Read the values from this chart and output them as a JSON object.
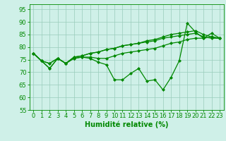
{
  "title": "",
  "xlabel": "Humidité relative (%)",
  "ylabel": "",
  "background_color": "#cff0e8",
  "line_color": "#008800",
  "grid_color": "#99ccbb",
  "xlim": [
    -0.5,
    23.5
  ],
  "ylim": [
    55,
    97
  ],
  "yticks": [
    55,
    60,
    65,
    70,
    75,
    80,
    85,
    90,
    95
  ],
  "xticks": [
    0,
    1,
    2,
    3,
    4,
    5,
    6,
    7,
    8,
    9,
    10,
    11,
    12,
    13,
    14,
    15,
    16,
    17,
    18,
    19,
    20,
    21,
    22,
    23
  ],
  "lines": [
    [
      77.5,
      74.5,
      71.5,
      75.5,
      73.5,
      75.5,
      76.0,
      75.5,
      74.0,
      73.0,
      67.0,
      67.0,
      69.5,
      71.5,
      66.5,
      67.0,
      63.0,
      68.0,
      74.5,
      89.5,
      86.0,
      83.5,
      85.5,
      83.5
    ],
    [
      77.5,
      74.5,
      71.5,
      75.5,
      73.5,
      75.5,
      76.0,
      76.0,
      75.5,
      75.5,
      76.5,
      77.5,
      78.0,
      78.5,
      79.0,
      79.5,
      80.5,
      81.5,
      82.0,
      83.0,
      83.5,
      83.5,
      84.0,
      83.5
    ],
    [
      77.5,
      74.5,
      73.5,
      75.5,
      73.5,
      76.0,
      76.5,
      77.5,
      78.0,
      79.0,
      79.5,
      80.5,
      81.0,
      81.5,
      82.0,
      82.5,
      83.5,
      84.0,
      84.5,
      85.0,
      85.5,
      84.0,
      83.5,
      83.5
    ],
    [
      77.5,
      74.5,
      73.5,
      75.5,
      73.5,
      76.0,
      76.5,
      77.5,
      78.0,
      79.0,
      79.5,
      80.5,
      81.0,
      81.5,
      82.5,
      83.0,
      84.0,
      85.0,
      85.5,
      86.0,
      86.5,
      85.0,
      84.0,
      83.5
    ]
  ],
  "marker": "D",
  "markersize": 2.0,
  "linewidth": 0.9,
  "xlabel_fontsize": 7,
  "tick_fontsize": 6
}
